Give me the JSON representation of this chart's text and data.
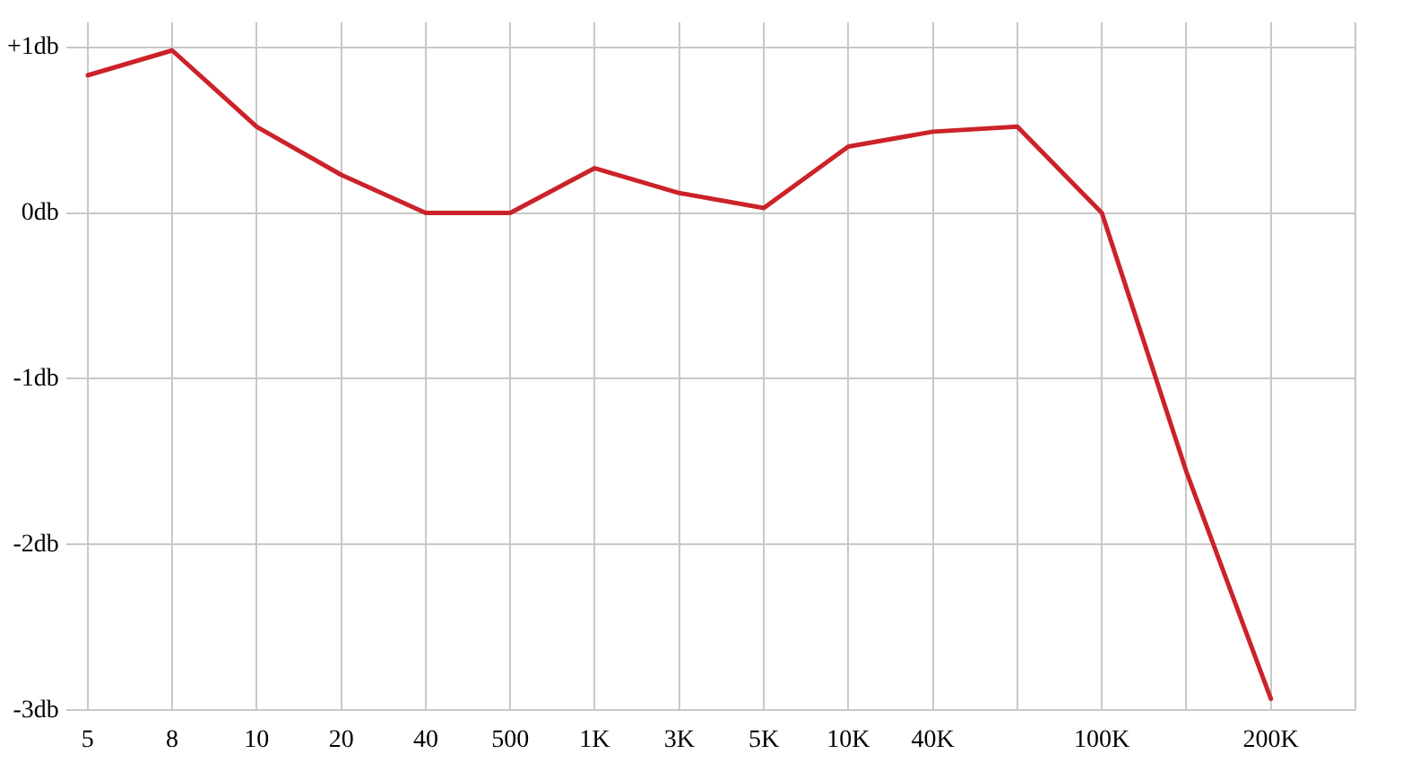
{
  "chart_data": {
    "type": "line",
    "categories": [
      "5",
      "8",
      "10",
      "20",
      "40",
      "500",
      "1K",
      "3K",
      "5K",
      "10K",
      "40K",
      null,
      "100K",
      null,
      "200K",
      null
    ],
    "series": [
      {
        "color": "#cc2229",
        "values": [
          0.83,
          0.98,
          0.52,
          0.23,
          0,
          0,
          0.27,
          0.12,
          0.03,
          0.4,
          0.49,
          0.52,
          0,
          -1.56,
          -2.93,
          null
        ]
      }
    ],
    "ylim": [
      -3,
      1.15
    ],
    "yticks": [
      {
        "value": 1,
        "label": "+1db"
      },
      {
        "value": 0,
        "label": "0db"
      },
      {
        "value": -1,
        "label": "-1db"
      },
      {
        "value": -2,
        "label": "-2db"
      },
      {
        "value": -3,
        "label": "-3db"
      }
    ],
    "grid": true,
    "legend": false,
    "marker": "none",
    "line_style": "solid"
  }
}
